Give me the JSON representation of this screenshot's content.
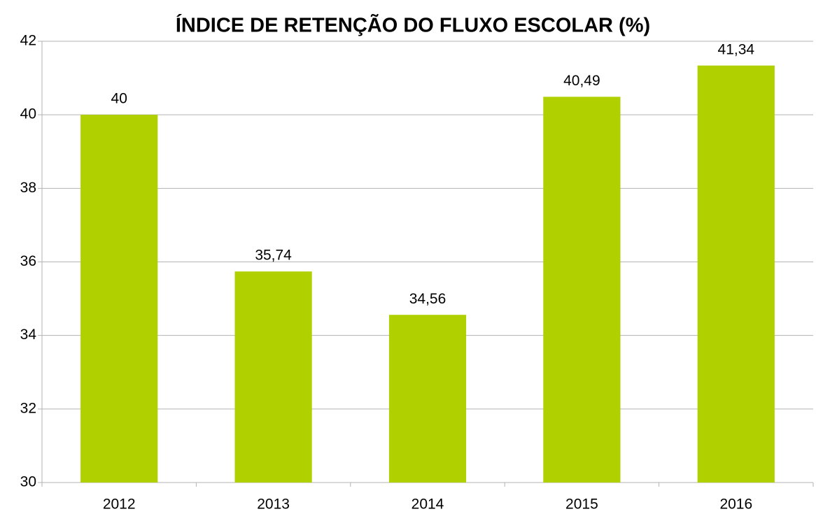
{
  "chart_data": {
    "type": "bar",
    "title": "ÍNDICE DE RETENÇÃO DO FLUXO ESCOLAR (%)",
    "categories": [
      "2012",
      "2013",
      "2014",
      "2015",
      "2016"
    ],
    "values": [
      40,
      35.74,
      34.56,
      40.49,
      41.34
    ],
    "value_labels": [
      "40",
      "35,74",
      "34,56",
      "40,49",
      "41,34"
    ],
    "color": "#b0d000",
    "ylim": [
      30,
      42
    ],
    "yticks": [
      30,
      32,
      34,
      36,
      38,
      40,
      42
    ],
    "grid": true
  }
}
